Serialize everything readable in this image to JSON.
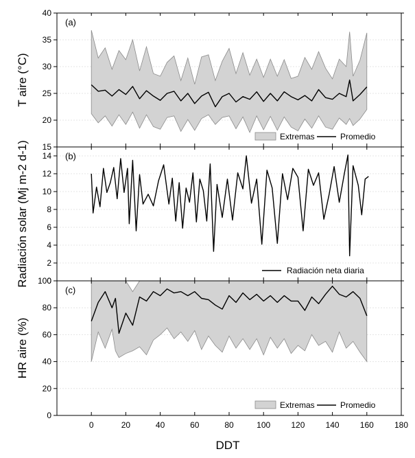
{
  "chart_data": {
    "type": "line",
    "xlabel": "DDT",
    "xlim": [
      -20,
      180
    ],
    "xticks": [
      0,
      20,
      40,
      60,
      80,
      100,
      120,
      140,
      160,
      180
    ],
    "panels": [
      {
        "label": "(a)",
        "ylabel": "T aire (°C)",
        "ylim": [
          15,
          40
        ],
        "yticks": [
          15,
          20,
          25,
          30,
          35,
          40
        ],
        "grid": true,
        "legend": {
          "position": "bottom-right",
          "band_label": "Extremas",
          "line_label": "Promedio"
        },
        "x": [
          0,
          4,
          8,
          12,
          16,
          20,
          24,
          28,
          32,
          36,
          40,
          44,
          48,
          52,
          56,
          60,
          64,
          68,
          72,
          76,
          80,
          84,
          88,
          92,
          96,
          100,
          104,
          108,
          112,
          116,
          120,
          124,
          128,
          132,
          136,
          140,
          144,
          148,
          150,
          152,
          156,
          160
        ],
        "series": [
          {
            "name": "Promedio",
            "kind": "line",
            "values": [
              26.6,
              25.4,
              25.6,
              24.5,
              25.7,
              24.8,
              26.3,
              24.0,
              25.5,
              24.5,
              23.7,
              25.0,
              25.4,
              23.6,
              25.0,
              23.1,
              24.5,
              25.2,
              22.5,
              24.4,
              25.0,
              23.4,
              24.4,
              23.9,
              25.3,
              23.5,
              25.0,
              23.6,
              25.3,
              24.4,
              23.8,
              24.6,
              23.6,
              25.7,
              24.2,
              23.9,
              25.0,
              24.4,
              27.5,
              23.6,
              24.8,
              26.2
            ]
          },
          {
            "name": "Extremas",
            "kind": "band",
            "max": [
              36.8,
              31.6,
              33.5,
              29.5,
              33.0,
              31.3,
              35.0,
              29.2,
              33.7,
              28.7,
              28.2,
              30.8,
              32.0,
              27.4,
              31.6,
              26.7,
              31.8,
              32.2,
              27.4,
              31.0,
              33.4,
              28.7,
              32.6,
              28.4,
              31.4,
              28.0,
              31.4,
              28.2,
              31.3,
              27.8,
              28.2,
              31.7,
              29.5,
              32.8,
              29.7,
              27.7,
              31.4,
              30.0,
              36.5,
              28.2,
              31.2,
              36.3
            ],
            "min": [
              21.2,
              19.5,
              20.8,
              18.9,
              21.0,
              19.2,
              21.5,
              18.5,
              21.0,
              18.8,
              18.3,
              20.5,
              20.8,
              17.9,
              20.1,
              18.1,
              20.3,
              21.0,
              19.2,
              20.5,
              20.8,
              18.4,
              20.6,
              17.7,
              20.8,
              18.2,
              20.7,
              18.1,
              20.6,
              18.7,
              18.0,
              20.2,
              18.5,
              20.8,
              18.7,
              18.3,
              20.4,
              19.2,
              20.3,
              19.0,
              20.2,
              22.0
            ]
          }
        ]
      },
      {
        "label": "(b)",
        "ylabel": "Radiación solar (Mj m-2 d-1)",
        "ylim": [
          0,
          15
        ],
        "yticks": [
          0,
          2,
          4,
          6,
          8,
          10,
          12,
          14
        ],
        "grid": true,
        "legend": {
          "position": "bottom-right",
          "line_label": "Radiación neta diaria"
        },
        "x": [
          0,
          1,
          3,
          5,
          7,
          9,
          11,
          13,
          15,
          17,
          19,
          21,
          22,
          24,
          26,
          28,
          30,
          33,
          36,
          39,
          42,
          45,
          47,
          49,
          51,
          53,
          55,
          57,
          59,
          61,
          63,
          65,
          67,
          69,
          71,
          73,
          76,
          79,
          82,
          85,
          88,
          90,
          93,
          96,
          99,
          102,
          105,
          108,
          111,
          114,
          117,
          120,
          123,
          126,
          129,
          132,
          135,
          138,
          141,
          144,
          147,
          149,
          150,
          152,
          155,
          157,
          159,
          161
        ],
        "series": [
          {
            "name": "Radiación neta diaria",
            "kind": "line",
            "values": [
              12.0,
              7.6,
              10.5,
              8.3,
              12.6,
              9.9,
              11.0,
              12.7,
              9.2,
              13.7,
              9.9,
              12.6,
              6.4,
              13.5,
              5.6,
              11.9,
              8.6,
              9.7,
              8.4,
              11.2,
              13.0,
              8.6,
              11.5,
              6.7,
              11.0,
              5.9,
              10.4,
              8.8,
              12.1,
              6.6,
              11.4,
              10.1,
              6.7,
              13.1,
              3.3,
              10.8,
              7.1,
              11.4,
              6.8,
              12.1,
              10.3,
              14.0,
              8.7,
              11.4,
              4.1,
              12.4,
              10.4,
              4.2,
              12.0,
              9.1,
              12.6,
              11.6,
              5.6,
              12.5,
              10.7,
              12.1,
              6.9,
              9.6,
              12.8,
              8.8,
              12.1,
              14.1,
              2.8,
              12.9,
              10.7,
              7.4,
              11.4,
              11.7
            ]
          }
        ]
      },
      {
        "label": "(c)",
        "ylabel": "HR aire (%)",
        "ylim": [
          0,
          100
        ],
        "yticks": [
          0,
          20,
          40,
          60,
          80,
          100
        ],
        "grid": true,
        "legend": {
          "position": "bottom-right",
          "band_label": "Extremas",
          "line_label": "Promedio"
        },
        "x": [
          0,
          4,
          8,
          12,
          14,
          16,
          20,
          24,
          28,
          32,
          36,
          40,
          44,
          48,
          52,
          56,
          60,
          64,
          68,
          72,
          76,
          80,
          84,
          88,
          92,
          96,
          100,
          104,
          108,
          112,
          116,
          120,
          124,
          128,
          132,
          136,
          140,
          144,
          148,
          152,
          156,
          160
        ],
        "series": [
          {
            "name": "Promedio",
            "kind": "line",
            "values": [
              70,
              84,
              92,
              80,
              87,
              61,
              76,
              67,
              88,
              85,
              92,
              89,
              94,
              91,
              92,
              89,
              92,
              87,
              86,
              82,
              79,
              89,
              84,
              91,
              86,
              90,
              85,
              89,
              84,
              89,
              85,
              85,
              78,
              88,
              83,
              90,
              96,
              90,
              88,
              92,
              87,
              74
            ]
          },
          {
            "name": "Extremas",
            "kind": "band",
            "max": [
              100,
              100,
              100,
              100,
              100,
              100,
              100,
              92,
              100,
              100,
              100,
              100,
              100,
              100,
              100,
              100,
              100,
              100,
              100,
              100,
              100,
              100,
              100,
              100,
              100,
              100,
              100,
              100,
              100,
              100,
              100,
              100,
              100,
              100,
              100,
              100,
              100,
              100,
              100,
              100,
              100,
              100
            ],
            "min": [
              40,
              62,
              50,
              64,
              48,
              43,
              46,
              48,
              51,
              45,
              56,
              60,
              65,
              57,
              62,
              55,
              63,
              49,
              59,
              52,
              47,
              59,
              50,
              57,
              49,
              57,
              45,
              58,
              50,
              57,
              46,
              52,
              48,
              60,
              52,
              55,
              47,
              62,
              50,
              55,
              47,
              40
            ]
          }
        ]
      }
    ]
  }
}
